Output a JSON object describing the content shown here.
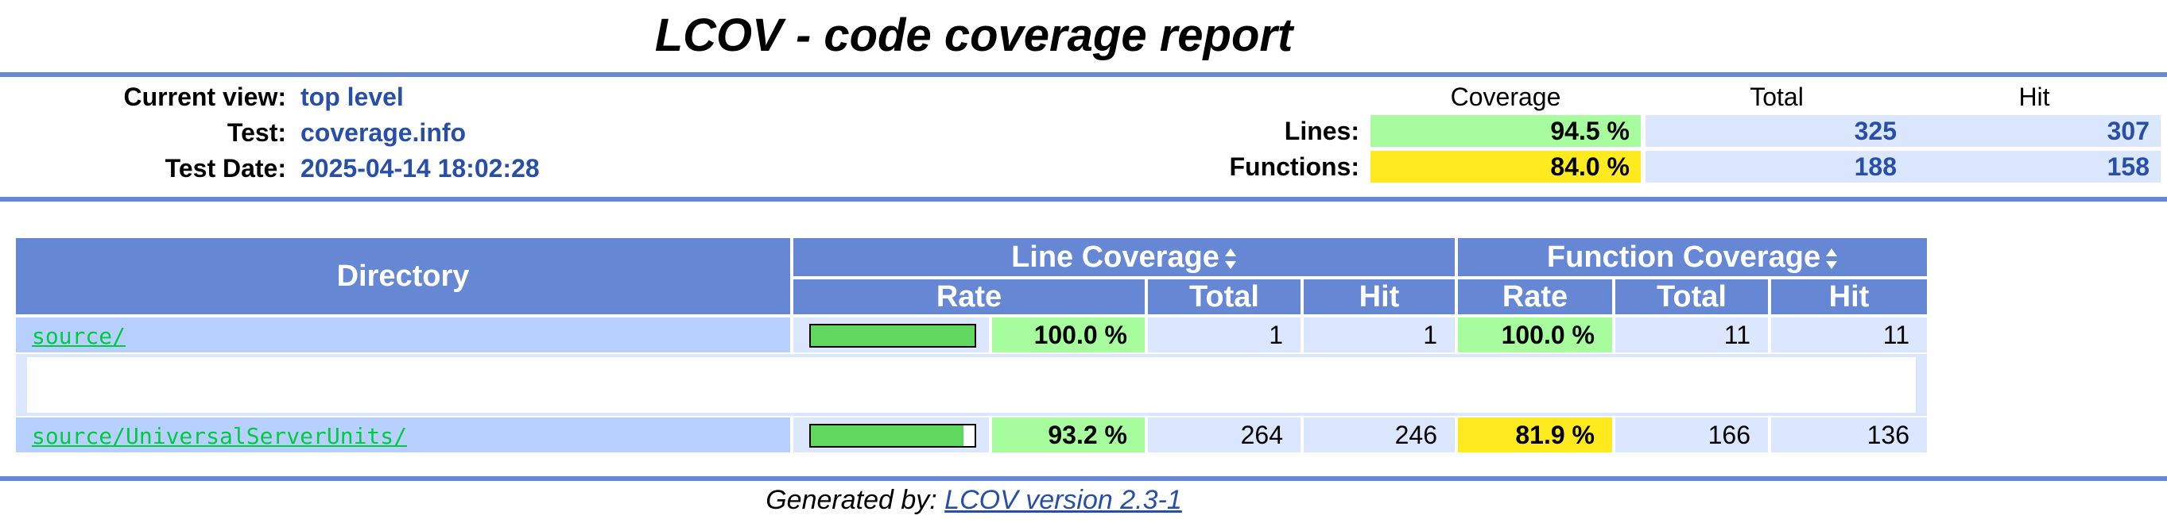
{
  "title": "LCOV - code coverage report",
  "header": {
    "current_view_label": "Current view:",
    "current_view_value": "top level",
    "test_label": "Test:",
    "test_value": "coverage.info",
    "date_label": "Test Date:",
    "date_value": "2025-04-14 18:02:28"
  },
  "summary": {
    "col_coverage": "Coverage",
    "col_total": "Total",
    "col_hit": "Hit",
    "lines_label": "Lines:",
    "lines_coverage": "94.5 %",
    "lines_total": "325",
    "lines_hit": "307",
    "functions_label": "Functions:",
    "functions_coverage": "84.0 %",
    "functions_total": "188",
    "functions_hit": "158"
  },
  "table": {
    "col_directory": "Directory",
    "col_line_coverage": "Line Coverage",
    "col_function_coverage": "Function Coverage",
    "col_rate": "Rate",
    "col_total": "Total",
    "col_hit": "Hit",
    "rows": [
      {
        "name": "source/",
        "line_bar_fraction": 1.0,
        "line_rate": "100.0 %",
        "line_total": "1",
        "line_hit": "1",
        "func_rate": "100.0 %",
        "func_total": "11",
        "func_hit": "11"
      },
      {
        "name": "source/UniversalServerUnits/",
        "line_bar_fraction": 0.932,
        "line_rate": "93.2 %",
        "line_total": "264",
        "line_hit": "246",
        "func_rate": "81.9 %",
        "func_total": "166",
        "func_hit": "136"
      }
    ]
  },
  "footer": {
    "prefix": "Generated by:",
    "link": "LCOV version 2.3-1"
  },
  "colors": {
    "header_blue": "#6688d4",
    "row_light": "#dae7fe",
    "file_cell": "#b8d0ff",
    "coverage_high": "#a7fc9d",
    "coverage_medium": "#ffea20",
    "link_blue": "#284fa8",
    "file_link_green": "#00cb40"
  },
  "icons": {
    "sort": "sort-updown-icon"
  }
}
